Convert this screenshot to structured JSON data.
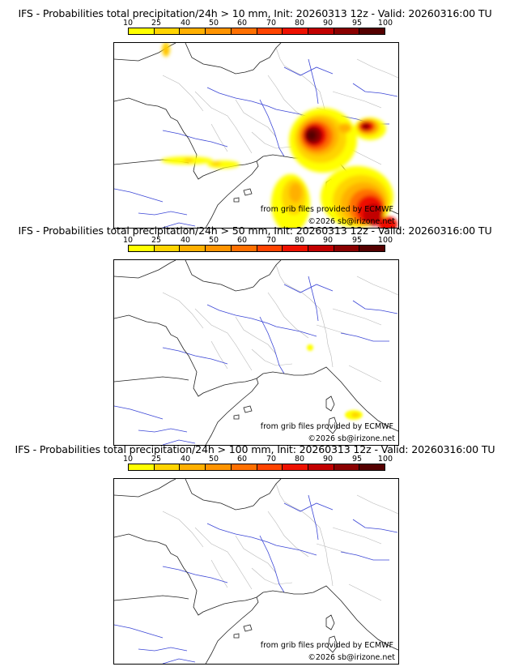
{
  "colorbar": {
    "ticks": [
      "10",
      "25",
      "40",
      "50",
      "60",
      "70",
      "80",
      "90",
      "95",
      "100"
    ],
    "colors": [
      "#ffff00",
      "#ffd400",
      "#ffb000",
      "#ff9400",
      "#ff7000",
      "#ff4400",
      "#ee1100",
      "#c20000",
      "#8a0000",
      "#550000"
    ]
  },
  "panels": [
    {
      "title": "IFS - Probabilities total precipitation/24h > 10 mm, Init: 20260313 12z - Valid: 20260316:00 TU",
      "credit_grib": "from grib files provided by ECMWF",
      "credit_copy": "©2026 sb@irizone.net"
    },
    {
      "title": "IFS - Probabilities total precipitation/24h > 50 mm, Init: 20260313 12z - Valid: 20260316:00 TU",
      "credit_grib": "from grib files provided by ECMWF",
      "credit_copy": "©2026 sb@irizone.net"
    },
    {
      "title": "IFS - Probabilities total precipitation/24h > 100 mm, Init: 20260313 12z - Valid: 20260316:00 TU",
      "credit_grib": "from grib files provided by ECMWF",
      "credit_copy": "©2026 sb@irizone.net"
    }
  ]
}
